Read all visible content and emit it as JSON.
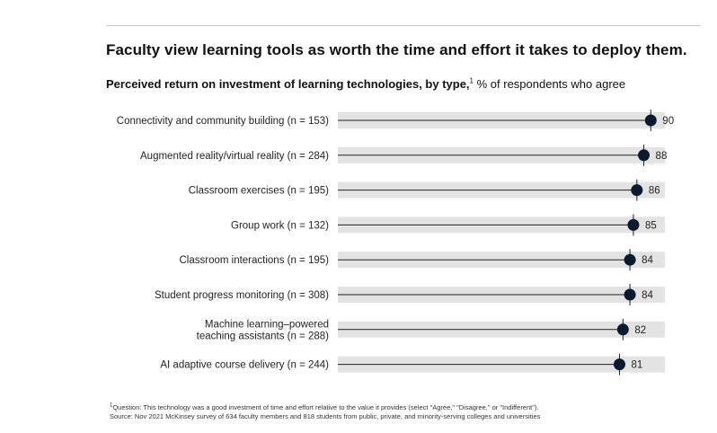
{
  "title": "Faculty view learning tools as worth the time and effort it takes to deploy them.",
  "subtitle": {
    "bold": "Perceived return on investment of learning technologies, by type,",
    "note_marker": "1",
    "rest": " % of respondents who agree"
  },
  "footnotes": {
    "marker": "1",
    "question": "Question: This technology was a good investment of time and effort relative to the value it provides (select \"Agree,\" \"Disagree,\" or \"Indifferent\").",
    "source": "Source: Nov 2021 McKinsey survey of 634 faculty members and 818 students from public, private, and minority-serving colleges and universities"
  },
  "colors": {
    "band": "#e3e3e3",
    "line": "#222222",
    "dot": "#0a1a2f",
    "marker": "#222222"
  },
  "chart_data": {
    "type": "dot",
    "categories": [
      [
        "Connectivity and community building (n = 153)"
      ],
      [
        "Augmented reality/virtual reality (n = 284)"
      ],
      [
        "Classroom exercises (n = 195)"
      ],
      [
        "Group work (n = 132)"
      ],
      [
        "Classroom interactions (n = 195)"
      ],
      [
        "Student progress monitoring (n = 308)"
      ],
      [
        "Machine learning–powered",
        "teaching assistants (n = 288)"
      ],
      [
        "AI adaptive course delivery (n = 244)"
      ]
    ],
    "values": [
      90,
      88,
      86,
      85,
      84,
      84,
      82,
      81
    ],
    "unit": "% of respondents who agree",
    "xlim": [
      0,
      100
    ],
    "grid": false,
    "legend": "none"
  }
}
